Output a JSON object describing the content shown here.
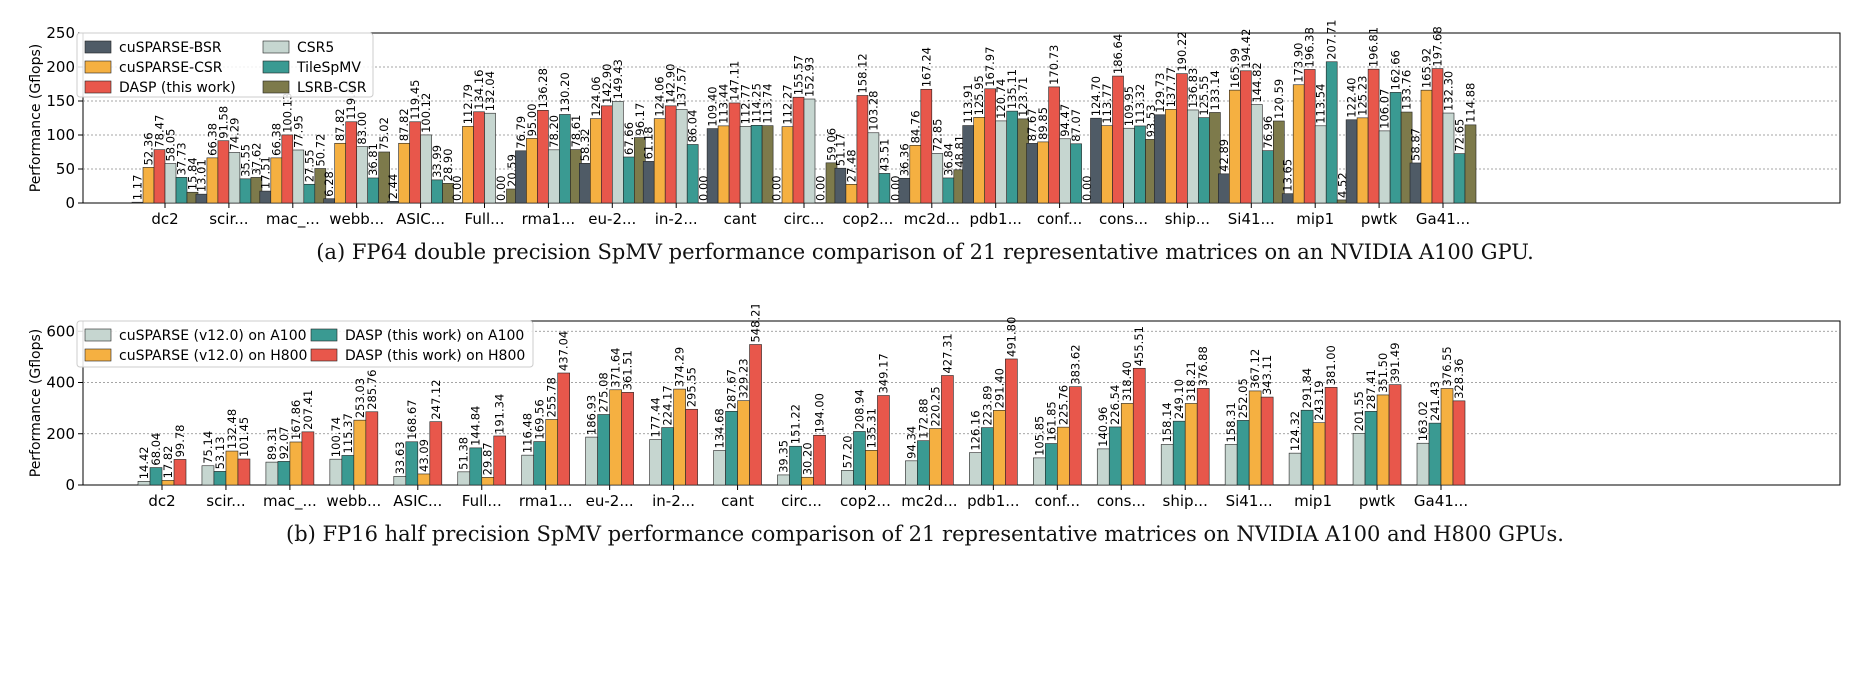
{
  "charts": [
    {
      "caption": "(a)  FP64 double precision SpMV performance comparison of 21 representative matrices on an NVIDIA A100 GPU."
    },
    {
      "caption": "(b)  FP16 half precision SpMV performance comparison of 21 representative matrices on NVIDIA A100 and H800 GPUs."
    }
  ],
  "chart_data": [
    {
      "type": "bar",
      "ylabel": "Performance (Gflops)",
      "ylim": [
        0,
        250
      ],
      "yticks": [
        0,
        50,
        100,
        150,
        200,
        250
      ],
      "grid": true,
      "legend_position": "top-left",
      "categories": [
        "dc2",
        "scir...",
        "mac_...",
        "webb...",
        "ASIC...",
        "Full...",
        "rma1...",
        "eu-2...",
        "in-2...",
        "cant",
        "circ...",
        "cop2...",
        "mc2d...",
        "pdb1...",
        "conf...",
        "cons...",
        "ship...",
        "Si41...",
        "mip1",
        "pwtk",
        "Ga41..."
      ],
      "series": [
        {
          "name": "cuSPARSE-BSR",
          "color": "#4f5b66",
          "values": [
            1.17,
            13.01,
            17.51,
            6.28,
            2.44,
            0.0,
            76.79,
            58.32,
            61.18,
            109.4,
            0.0,
            51.17,
            36.36,
            113.91,
            87.67,
            124.7,
            129.73,
            42.89,
            13.65,
            122.4,
            58.87
          ]
        },
        {
          "name": "cuSPARSE-CSR",
          "color": "#f5b041",
          "values": [
            52.36,
            66.38,
            66.38,
            87.82,
            87.82,
            112.79,
            95.0,
            124.06,
            124.06,
            113.44,
            112.27,
            27.48,
            84.76,
            125.95,
            89.85,
            113.77,
            137.77,
            165.99,
            173.9,
            125.23,
            165.92
          ]
        },
        {
          "name": "DASP (this work)",
          "color": "#e8574b",
          "values": [
            78.47,
            91.58,
            100.13,
            119.45,
            119.45,
            134.16,
            136.28,
            142.9,
            142.9,
            147.11,
            155.57,
            158.12,
            167.24,
            167.97,
            170.73,
            186.64,
            190.22,
            194.42,
            196.38,
            196.81,
            197.68
          ]
        },
        {
          "name": "CSR5",
          "color": "#c6d6d0",
          "values": [
            58.05,
            74.29,
            77.95,
            83.0,
            100.12,
            132.04,
            78.2,
            149.43,
            137.57,
            112.77,
            152.93,
            103.28,
            72.85,
            120.74,
            94.47,
            109.95,
            136.83,
            144.82,
            113.54,
            106.07,
            132.3
          ]
        },
        {
          "name": "TileSpMV",
          "color": "#3a9a92",
          "values": [
            37.73,
            35.55,
            27.55,
            36.81,
            33.99,
            0.0,
            130.2,
            67.66,
            86.04,
            114.25,
            0.0,
            43.51,
            36.84,
            135.11,
            87.07,
            113.32,
            125.55,
            76.96,
            207.71,
            162.66,
            72.65
          ]
        },
        {
          "name": "LSRB-CSR",
          "color": "#7d7a4b",
          "values": [
            15.84,
            37.62,
            50.72,
            75.02,
            28.9,
            20.59,
            78.61,
            96.17,
            0.0,
            113.74,
            59.06,
            0.0,
            48.81,
            123.71,
            0.0,
            93.53,
            133.14,
            120.59,
            4.52,
            133.76,
            114.88
          ]
        }
      ]
    },
    {
      "type": "bar",
      "ylabel": "Performance (Gflops)",
      "ylim": [
        0,
        640
      ],
      "yticks": [
        0,
        200,
        400,
        600
      ],
      "grid": true,
      "legend_position": "top-left",
      "categories": [
        "dc2",
        "scir...",
        "mac_...",
        "webb...",
        "ASIC...",
        "Full...",
        "rma1...",
        "eu-2...",
        "in-2...",
        "cant",
        "circ...",
        "cop2...",
        "mc2d...",
        "pdb1...",
        "conf...",
        "cons...",
        "ship...",
        "Si41...",
        "mip1",
        "pwtk",
        "Ga41..."
      ],
      "series": [
        {
          "name": "cuSPARSE (v12.0) on A100",
          "color": "#c6d6d0",
          "values": [
            14.42,
            75.14,
            89.31,
            100.74,
            33.63,
            51.38,
            116.48,
            186.93,
            177.44,
            134.68,
            39.35,
            57.2,
            94.34,
            126.16,
            105.85,
            140.96,
            158.14,
            158.31,
            124.32,
            201.55,
            163.02
          ]
        },
        {
          "name": "DASP (this work) on A100",
          "color": "#3a9a92",
          "values": [
            68.04,
            53.13,
            92.07,
            115.37,
            168.67,
            144.84,
            169.56,
            275.08,
            224.17,
            287.67,
            151.22,
            208.94,
            172.88,
            223.89,
            161.85,
            226.54,
            249.1,
            252.05,
            291.84,
            287.41,
            241.43
          ]
        },
        {
          "name": "cuSPARSE (v12.0) on H800",
          "color": "#f5b041",
          "values": [
            17.82,
            132.48,
            167.86,
            253.03,
            43.09,
            29.87,
            255.78,
            371.64,
            374.29,
            329.23,
            30.2,
            135.31,
            220.25,
            291.4,
            225.76,
            318.4,
            318.21,
            367.12,
            243.19,
            351.5,
            376.55
          ]
        },
        {
          "name": "DASP (this work) on H800",
          "color": "#e8574b",
          "values": [
            99.78,
            101.45,
            207.41,
            285.76,
            247.12,
            191.34,
            437.04,
            361.51,
            295.55,
            548.21,
            194.0,
            349.17,
            427.31,
            491.8,
            383.62,
            455.51,
            376.88,
            343.11,
            381.0,
            391.49,
            328.36
          ]
        }
      ]
    }
  ]
}
